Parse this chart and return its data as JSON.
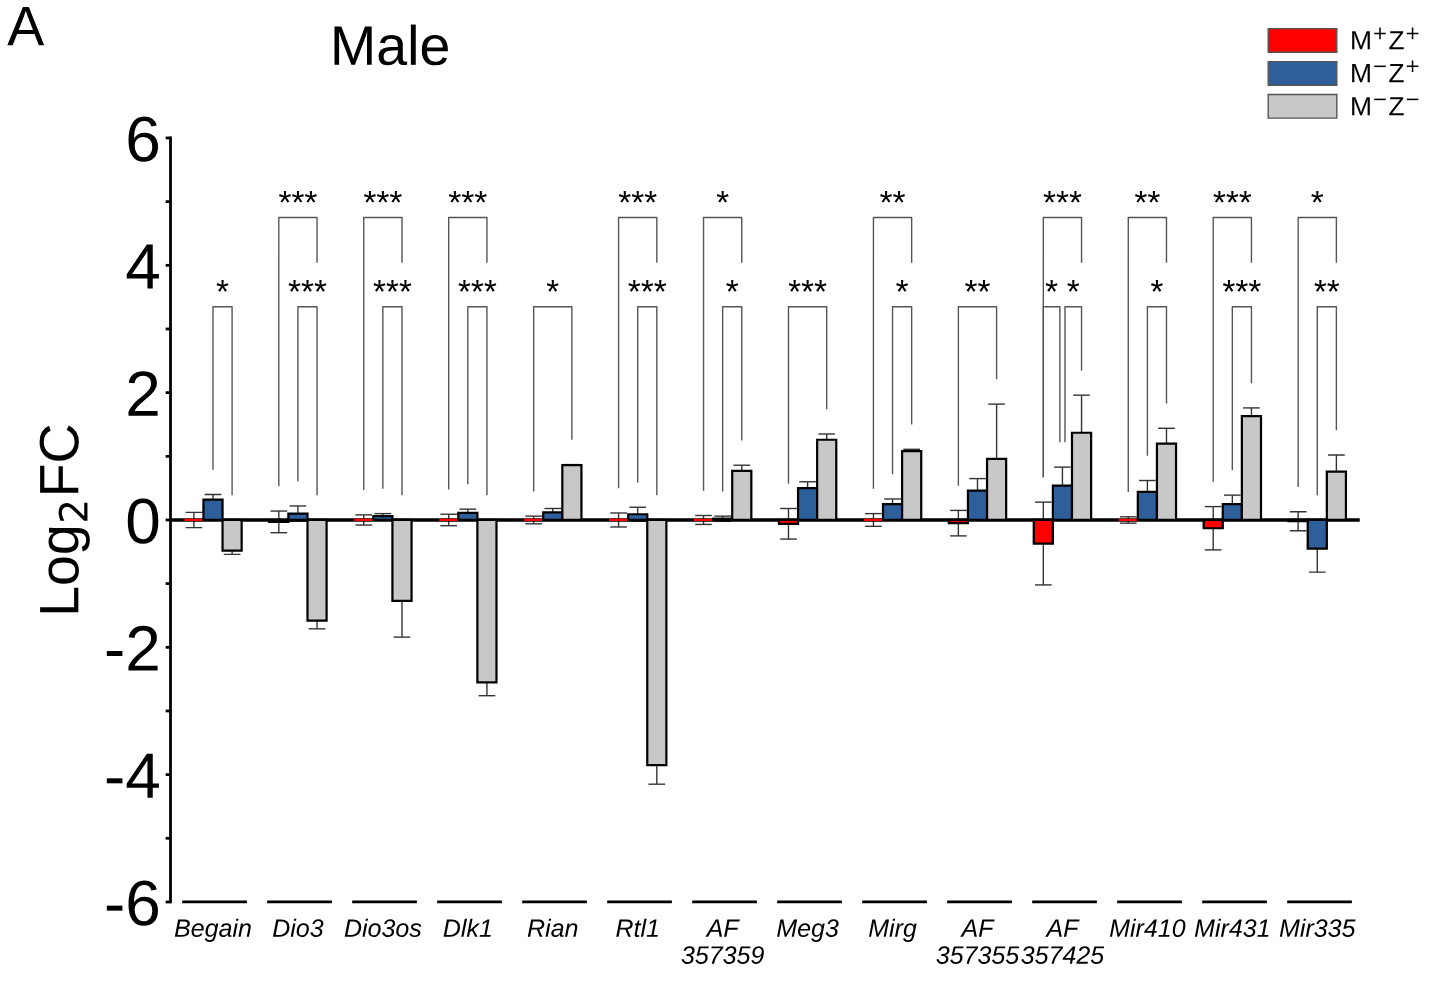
{
  "chart_data": {
    "type": "bar",
    "title": "Male",
    "ylabel": "Log$_{2}$FC",
    "categories": [
      "Begain",
      "Dio3",
      "Dio3os",
      "Dlk1",
      "Rian",
      "Rtl1",
      "AF\n357359",
      "Meg3",
      "Mirg",
      "AF\n357355",
      "AF\n357425",
      "Mir410",
      "Mir431",
      "Mir335"
    ],
    "series": [
      {
        "name": "M$^{+}$Z$^{+}$",
        "color": "#ff0000",
        "values": [
          0,
          -0.03,
          0,
          0,
          0,
          0,
          0,
          -0.06,
          0,
          -0.05,
          -0.37,
          0,
          -0.13,
          -0.02
        ],
        "errors": [
          0.12,
          0.17,
          0.08,
          0.09,
          0.06,
          0.11,
          0.07,
          0.24,
          0.1,
          0.2,
          0.65,
          0.05,
          0.34,
          0.15
        ]
      },
      {
        "name": "M$^{−}$Z$^{+}$",
        "color": "#2e5f9a",
        "values": [
          0.32,
          0.1,
          0.06,
          0.11,
          0.12,
          0.09,
          0.02,
          0.5,
          0.25,
          0.46,
          0.54,
          0.44,
          0.25,
          -0.45
        ],
        "errors": [
          0.08,
          0.12,
          0.04,
          0.06,
          0.06,
          0.11,
          0.04,
          0.1,
          0.08,
          0.19,
          0.29,
          0.18,
          0.14,
          0.37
        ]
      },
      {
        "name": "M$^{−}$Z$^{−}$",
        "color": "#c8c8c8",
        "values": [
          -0.48,
          -1.58,
          -1.27,
          -2.55,
          0.86,
          -3.85,
          0.77,
          1.26,
          1.08,
          0.96,
          1.37,
          1.2,
          1.63,
          0.76
        ],
        "errors": [
          0.06,
          0.13,
          0.57,
          0.21,
          0.01,
          0.3,
          0.09,
          0.09,
          0.03,
          0.86,
          0.59,
          0.24,
          0.13,
          0.26
        ]
      }
    ],
    "ylim": [
      -6,
      6
    ],
    "yticks": [
      -6,
      {
        "value": -5,
        "label": null
      },
      -4,
      {
        "value": -3,
        "label": null
      },
      -2,
      {
        "value": -1,
        "label": null
      },
      0,
      {
        "value": 1,
        "label": null
      },
      2,
      {
        "value": 3,
        "label": null
      },
      4,
      {
        "value": 5,
        "label": null
      },
      6
    ],
    "ref_lines": [
      {
        "axis": "y",
        "value": 0,
        "color": "#000000"
      }
    ],
    "grid": false,
    "legend": "top right",
    "annotations": [
      "A",
      "*",
      "***",
      "***",
      "***",
      "***",
      "***",
      "***",
      "*",
      "***",
      "***",
      "*",
      "*",
      "***",
      "**",
      "*",
      "**",
      "***",
      "*",
      "*",
      "**",
      "*",
      "***",
      "***",
      "*",
      "**"
    ]
  }
}
